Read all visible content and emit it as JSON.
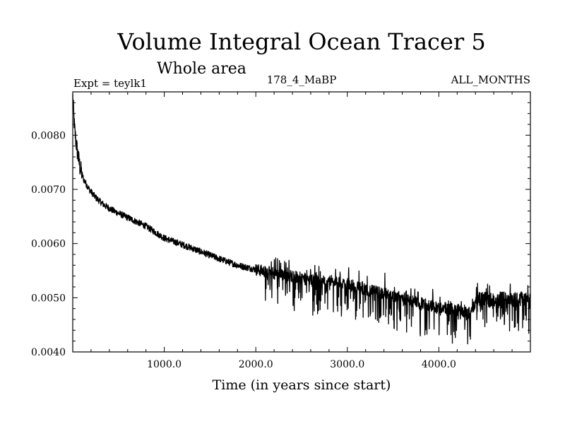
{
  "chart_data": {
    "type": "line",
    "title": "Volume Integral Ocean Tracer 5",
    "subtitle": "Whole area",
    "header_left": "Expt = teylk1",
    "header_center": "178_4_MaBP",
    "header_right": "ALL_MONTHS",
    "xlabel": "Time (in years since start)",
    "ylabel": "",
    "xlim": [
      0,
      5000
    ],
    "ylim": [
      0.004,
      0.0088
    ],
    "x_ticks": [
      1000,
      2000,
      3000,
      4000
    ],
    "x_tick_labels": [
      "1000.0",
      "2000.0",
      "3000.0",
      "4000.0"
    ],
    "y_ticks": [
      0.004,
      0.005,
      0.006,
      0.007,
      0.008
    ],
    "y_tick_labels": [
      "0.0040",
      "0.0050",
      "0.0060",
      "0.0070",
      "0.0080"
    ],
    "grid": false,
    "series": [
      {
        "x": [
          0,
          20,
          50,
          80,
          120,
          180,
          250,
          350,
          450,
          600,
          800,
          1000,
          1200,
          1400,
          1600,
          1800,
          2000,
          2200,
          2400,
          2600,
          2800,
          3000,
          3200,
          3400,
          3600,
          3800,
          4000,
          4200,
          4300,
          4350,
          4400,
          4500,
          4600,
          4700,
          4800,
          4900,
          5000
        ],
        "values": [
          0.0087,
          0.0081,
          0.0077,
          0.0074,
          0.00718,
          0.007,
          0.00685,
          0.0067,
          0.0066,
          0.00648,
          0.00632,
          0.0061,
          0.00598,
          0.00585,
          0.00572,
          0.0056,
          0.00552,
          0.00545,
          0.0054,
          0.00532,
          0.0053,
          0.00525,
          0.00515,
          0.00508,
          0.005,
          0.0049,
          0.00482,
          0.00478,
          0.00472,
          0.0047,
          0.00495,
          0.00498,
          0.00493,
          0.00497,
          0.00495,
          0.00498,
          0.00495
        ]
      }
    ]
  }
}
